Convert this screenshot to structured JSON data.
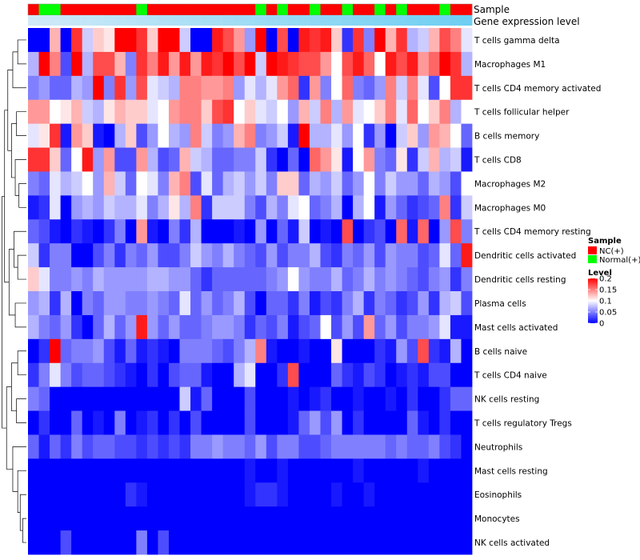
{
  "chart_data": {
    "type": "heatmap",
    "annotation_labels": {
      "sample": "Sample",
      "gene_expression": "Gene expression level"
    },
    "rows": [
      "T cells gamma delta",
      "Macrophages M1",
      "T cells CD4 memory activated",
      "T cells follicular helper",
      "B cells memory",
      "T cells CD8",
      "Macrophages M2",
      "Macrophages M0",
      "T cells CD4 memory resting",
      "Dendritic cells activated",
      "Dendritic cells resting",
      "Plasma cells",
      "Mast cells activated",
      "B cells naive",
      "T cells CD4 naive",
      "NK cells resting",
      "T cells regulatory  Tregs",
      "Neutrophils",
      "Mast cells resting",
      "Eosinophils",
      "Monocytes",
      "NK cells activated"
    ],
    "columns": [
      {
        "sample": "NC(+)",
        "expr": 0.0
      },
      {
        "sample": "Normal(+)",
        "expr": 0.02
      },
      {
        "sample": "Normal(+)",
        "expr": 0.04
      },
      {
        "sample": "NC(+)",
        "expr": 0.06
      },
      {
        "sample": "NC(+)",
        "expr": 0.08
      },
      {
        "sample": "NC(+)",
        "expr": 0.1
      },
      {
        "sample": "NC(+)",
        "expr": 0.12
      },
      {
        "sample": "NC(+)",
        "expr": 0.14
      },
      {
        "sample": "NC(+)",
        "expr": 0.16
      },
      {
        "sample": "NC(+)",
        "expr": 0.18
      },
      {
        "sample": "Normal(+)",
        "expr": 0.2
      },
      {
        "sample": "NC(+)",
        "expr": 0.22
      },
      {
        "sample": "NC(+)",
        "expr": 0.24
      },
      {
        "sample": "NC(+)",
        "expr": 0.26
      },
      {
        "sample": "NC(+)",
        "expr": 0.28
      },
      {
        "sample": "NC(+)",
        "expr": 0.3
      },
      {
        "sample": "NC(+)",
        "expr": 0.32
      },
      {
        "sample": "NC(+)",
        "expr": 0.34
      },
      {
        "sample": "NC(+)",
        "expr": 0.36
      },
      {
        "sample": "NC(+)",
        "expr": 0.38
      },
      {
        "sample": "NC(+)",
        "expr": 0.4
      },
      {
        "sample": "Normal(+)",
        "expr": 0.42
      },
      {
        "sample": "NC(+)",
        "expr": 0.44
      },
      {
        "sample": "Normal(+)",
        "expr": 0.46
      },
      {
        "sample": "NC(+)",
        "expr": 0.48
      },
      {
        "sample": "NC(+)",
        "expr": 0.5
      },
      {
        "sample": "Normal(+)",
        "expr": 0.52
      },
      {
        "sample": "NC(+)",
        "expr": 0.54
      },
      {
        "sample": "NC(+)",
        "expr": 0.56
      },
      {
        "sample": "Normal(+)",
        "expr": 0.58
      },
      {
        "sample": "NC(+)",
        "expr": 0.6
      },
      {
        "sample": "NC(+)",
        "expr": 0.62
      },
      {
        "sample": "Normal(+)",
        "expr": 0.64
      },
      {
        "sample": "NC(+)",
        "expr": 0.66
      },
      {
        "sample": "Normal(+)",
        "expr": 0.68
      },
      {
        "sample": "NC(+)",
        "expr": 0.7
      },
      {
        "sample": "NC(+)",
        "expr": 0.72
      },
      {
        "sample": "NC(+)",
        "expr": 0.74
      },
      {
        "sample": "Normal(+)",
        "expr": 0.76
      },
      {
        "sample": "NC(+)",
        "expr": 0.78
      },
      {
        "sample": "NC(+)",
        "expr": 0.8
      }
    ],
    "values": [
      [
        0.0,
        0.0,
        0.13,
        0.0,
        0.18,
        0.08,
        0.12,
        0.11,
        0.2,
        0.2,
        0.18,
        0.12,
        0.2,
        0.2,
        0.08,
        0.0,
        0.0,
        0.19,
        0.17,
        0.14,
        0.06,
        0.2,
        0.0,
        0.17,
        0.0,
        0.19,
        0.18,
        0.19,
        0.12,
        0.02,
        0.18,
        0.05,
        0.2,
        0.13,
        0.18,
        0.07,
        0.08,
        0.13,
        0.17,
        0.15,
        0.09
      ],
      [
        0.07,
        0.2,
        0.15,
        0.03,
        0.2,
        0.07,
        0.17,
        0.17,
        0.13,
        0.05,
        0.18,
        0.15,
        0.19,
        0.14,
        0.19,
        0.14,
        0.19,
        0.18,
        0.2,
        0.17,
        0.2,
        0.08,
        0.2,
        0.19,
        0.18,
        0.17,
        0.17,
        0.14,
        0.1,
        0.17,
        0.19,
        0.16,
        0.1,
        0.19,
        0.17,
        0.19,
        0.14,
        0.16,
        0.2,
        0.18,
        0.07
      ],
      [
        0.05,
        0.06,
        0.04,
        0.04,
        0.07,
        0.06,
        0.2,
        0.05,
        0.18,
        0.06,
        0.17,
        0.09,
        0.08,
        0.07,
        0.15,
        0.15,
        0.14,
        0.14,
        0.15,
        0.06,
        0.09,
        0.07,
        0.09,
        0.14,
        0.16,
        0.02,
        0.14,
        0.05,
        0.1,
        0.16,
        0.05,
        0.04,
        0.06,
        0.15,
        0.08,
        0.15,
        0.09,
        0.03,
        0.1,
        0.18,
        0.18
      ],
      [
        0.14,
        0.14,
        0.1,
        0.11,
        0.13,
        0.08,
        0.07,
        0.11,
        0.13,
        0.12,
        0.12,
        0.09,
        0.1,
        0.14,
        0.15,
        0.15,
        0.12,
        0.17,
        0.18,
        0.1,
        0.12,
        0.09,
        0.08,
        0.1,
        0.06,
        0.13,
        0.08,
        0.15,
        0.07,
        0.14,
        0.09,
        0.1,
        0.12,
        0.15,
        0.09,
        0.16,
        0.1,
        0.12,
        0.15,
        0.07,
        0.1
      ],
      [
        0.09,
        0.11,
        0.18,
        0.01,
        0.14,
        0.12,
        0.01,
        0.0,
        0.07,
        0.12,
        0.03,
        0.06,
        0.1,
        0.07,
        0.06,
        0.15,
        0.08,
        0.05,
        0.06,
        0.13,
        0.15,
        0.05,
        0.06,
        0.08,
        0.01,
        0.2,
        0.07,
        0.07,
        0.09,
        0.06,
        0.1,
        0.02,
        0.06,
        0.0,
        0.08,
        0.12,
        0.06,
        0.14,
        0.13,
        0.1,
        0.04
      ],
      [
        0.18,
        0.18,
        0.12,
        0.04,
        0.1,
        0.19,
        0.06,
        0.14,
        0.03,
        0.03,
        0.14,
        0.07,
        0.03,
        0.04,
        0.13,
        0.08,
        0.07,
        0.04,
        0.04,
        0.05,
        0.05,
        0.08,
        0.02,
        0.0,
        0.04,
        0.0,
        0.16,
        0.14,
        0.11,
        0.01,
        0.1,
        0.14,
        0.05,
        0.04,
        0.11,
        0.02,
        0.08,
        0.13,
        0.07,
        0.08,
        0.01
      ],
      [
        0.05,
        0.04,
        0.09,
        0.07,
        0.08,
        0.1,
        0.06,
        0.13,
        0.08,
        0.04,
        0.1,
        0.09,
        0.05,
        0.13,
        0.15,
        0.03,
        0.09,
        0.04,
        0.07,
        0.08,
        0.06,
        0.08,
        0.05,
        0.12,
        0.12,
        0.04,
        0.07,
        0.06,
        0.08,
        0.04,
        0.06,
        0.1,
        0.05,
        0.08,
        0.06,
        0.06,
        0.04,
        0.07,
        0.06,
        0.03,
        0.1
      ],
      [
        0.01,
        0.02,
        0.09,
        0.0,
        0.06,
        0.07,
        0.06,
        0.08,
        0.07,
        0.07,
        0.09,
        0.05,
        0.07,
        0.11,
        0.07,
        0.15,
        0.02,
        0.08,
        0.08,
        0.08,
        0.05,
        0.03,
        0.07,
        0.05,
        0.09,
        0.1,
        0.04,
        0.05,
        0.07,
        0.0,
        0.07,
        0.1,
        0.01,
        0.06,
        0.04,
        0.02,
        0.03,
        0.04,
        0.15,
        0.02,
        0.08
      ],
      [
        0.04,
        0.03,
        0.01,
        0.0,
        0.02,
        0.01,
        0.0,
        0.02,
        0.05,
        0.0,
        0.14,
        0.01,
        0.0,
        0.05,
        0.02,
        0.07,
        0.0,
        0.0,
        0.0,
        0.01,
        0.0,
        0.06,
        0.0,
        0.04,
        0.01,
        0.08,
        0.0,
        0.01,
        0.0,
        0.17,
        0.0,
        0.02,
        0.03,
        0.0,
        0.16,
        0.01,
        0.16,
        0.0,
        0.06,
        0.17,
        0.05
      ],
      [
        0.08,
        0.02,
        0.05,
        0.05,
        0.0,
        0.0,
        0.03,
        0.05,
        0.02,
        0.05,
        0.04,
        0.06,
        0.03,
        0.03,
        0.05,
        0.08,
        0.06,
        0.05,
        0.07,
        0.05,
        0.04,
        0.03,
        0.06,
        0.03,
        0.05,
        0.05,
        0.07,
        0.03,
        0.02,
        0.05,
        0.04,
        0.06,
        0.03,
        0.06,
        0.05,
        0.05,
        0.03,
        0.04,
        0.09,
        0.04,
        0.19
      ],
      [
        0.12,
        0.09,
        0.05,
        0.05,
        0.06,
        0.05,
        0.07,
        0.06,
        0.06,
        0.06,
        0.06,
        0.07,
        0.07,
        0.06,
        0.06,
        0.04,
        0.02,
        0.04,
        0.04,
        0.04,
        0.04,
        0.04,
        0.05,
        0.06,
        0.1,
        0.06,
        0.05,
        0.05,
        0.07,
        0.04,
        0.05,
        0.07,
        0.05,
        0.06,
        0.05,
        0.04,
        0.03,
        0.05,
        0.06,
        0.02,
        0.05
      ],
      [
        0.06,
        0.07,
        0.02,
        0.07,
        0.0,
        0.05,
        0.04,
        0.06,
        0.06,
        0.05,
        0.05,
        0.06,
        0.05,
        0.04,
        0.09,
        0.04,
        0.06,
        0.04,
        0.05,
        0.07,
        0.03,
        0.0,
        0.04,
        0.04,
        0.02,
        0.05,
        0.01,
        0.03,
        0.02,
        0.05,
        0.07,
        0.02,
        0.05,
        0.04,
        0.02,
        0.03,
        0.06,
        0.02,
        0.07,
        0.08,
        0.03
      ],
      [
        0.07,
        0.05,
        0.04,
        0.06,
        0.02,
        0.0,
        0.04,
        0.07,
        0.04,
        0.06,
        0.19,
        0.06,
        0.04,
        0.06,
        0.04,
        0.04,
        0.05,
        0.06,
        0.06,
        0.05,
        0.02,
        0.04,
        0.03,
        0.05,
        0.01,
        0.03,
        0.04,
        0.1,
        0.03,
        0.06,
        0.03,
        0.14,
        0.04,
        0.06,
        0.03,
        0.05,
        0.05,
        0.06,
        0.09,
        0.01,
        0.01
      ],
      [
        0.0,
        0.02,
        0.2,
        0.04,
        0.05,
        0.05,
        0.06,
        0.03,
        0.01,
        0.04,
        0.01,
        0.02,
        0.01,
        0.0,
        0.05,
        0.05,
        0.05,
        0.04,
        0.03,
        0.05,
        0.07,
        0.15,
        0.01,
        0.0,
        0.0,
        0.01,
        0.0,
        0.0,
        0.11,
        0.0,
        0.0,
        0.0,
        0.02,
        0.01,
        0.06,
        0.03,
        0.17,
        0.02,
        0.01,
        0.07,
        0.0
      ],
      [
        0.02,
        0.05,
        0.09,
        0.05,
        0.03,
        0.04,
        0.04,
        0.03,
        0.02,
        0.01,
        0.0,
        0.02,
        0.0,
        0.03,
        0.04,
        0.04,
        0.01,
        0.0,
        0.0,
        0.07,
        0.09,
        0.0,
        0.0,
        0.02,
        0.17,
        0.0,
        0.0,
        0.0,
        0.04,
        0.02,
        0.01,
        0.03,
        0.02,
        0.0,
        0.01,
        0.02,
        0.01,
        0.03,
        0.03,
        0.0,
        0.0
      ],
      [
        0.05,
        0.04,
        0.0,
        0.0,
        0.0,
        0.0,
        0.0,
        0.0,
        0.0,
        0.0,
        0.0,
        0.0,
        0.0,
        0.0,
        0.08,
        0.01,
        0.04,
        0.0,
        0.0,
        0.0,
        0.03,
        0.0,
        0.0,
        0.0,
        0.01,
        0.0,
        0.01,
        0.02,
        0.0,
        0.0,
        0.01,
        0.0,
        0.0,
        0.01,
        0.0,
        0.02,
        0.0,
        0.0,
        0.02,
        0.04,
        0.04
      ],
      [
        0.0,
        0.02,
        0.0,
        0.0,
        0.04,
        0.0,
        0.01,
        0.0,
        0.05,
        0.0,
        0.01,
        0.02,
        0.0,
        0.02,
        0.0,
        0.03,
        0.0,
        0.0,
        0.0,
        0.0,
        0.03,
        0.0,
        0.0,
        0.0,
        0.01,
        0.04,
        0.06,
        0.03,
        0.06,
        0.0,
        0.02,
        0.0,
        0.0,
        0.0,
        0.0,
        0.04,
        0.01,
        0.0,
        0.02,
        0.0,
        0.0
      ],
      [
        0.04,
        0.01,
        0.04,
        0.02,
        0.05,
        0.03,
        0.04,
        0.04,
        0.03,
        0.03,
        0.02,
        0.03,
        0.02,
        0.03,
        0.02,
        0.05,
        0.05,
        0.06,
        0.05,
        0.05,
        0.04,
        0.06,
        0.03,
        0.05,
        0.05,
        0.03,
        0.03,
        0.04,
        0.05,
        0.05,
        0.05,
        0.05,
        0.05,
        0.04,
        0.05,
        0.04,
        0.04,
        0.05,
        0.03,
        0.02,
        0.0
      ],
      [
        0.0,
        0.0,
        0.0,
        0.0,
        0.0,
        0.0,
        0.0,
        0.0,
        0.0,
        0.0,
        0.0,
        0.0,
        0.0,
        0.0,
        0.0,
        0.0,
        0.0,
        0.0,
        0.0,
        0.0,
        0.01,
        0.0,
        0.0,
        0.01,
        0.0,
        0.0,
        0.0,
        0.0,
        0.0,
        0.0,
        0.01,
        0.0,
        0.0,
        0.0,
        0.0,
        0.0,
        0.01,
        0.0,
        0.0,
        0.0,
        0.0
      ],
      [
        0.0,
        0.0,
        0.0,
        0.0,
        0.0,
        0.0,
        0.0,
        0.0,
        0.0,
        0.02,
        0.01,
        0.0,
        0.0,
        0.0,
        0.0,
        0.0,
        0.0,
        0.0,
        0.0,
        0.0,
        0.01,
        0.02,
        0.02,
        0.01,
        0.0,
        0.0,
        0.0,
        0.0,
        0.01,
        0.0,
        0.0,
        0.01,
        0.0,
        0.0,
        0.0,
        0.0,
        0.0,
        0.0,
        0.0,
        0.0,
        0.0
      ],
      [
        0.0,
        0.0,
        0.0,
        0.0,
        0.0,
        0.0,
        0.0,
        0.0,
        0.0,
        0.0,
        0.0,
        0.0,
        0.0,
        0.0,
        0.0,
        0.0,
        0.0,
        0.0,
        0.0,
        0.0,
        0.0,
        0.0,
        0.0,
        0.0,
        0.0,
        0.0,
        0.0,
        0.0,
        0.0,
        0.0,
        0.0,
        0.0,
        0.0,
        0.0,
        0.0,
        0.0,
        0.0,
        0.0,
        0.0,
        0.0,
        0.0
      ],
      [
        0.0,
        0.0,
        0.0,
        0.03,
        0.0,
        0.0,
        0.0,
        0.0,
        0.0,
        0.0,
        0.05,
        0.0,
        0.03,
        0.0,
        0.0,
        0.0,
        0.0,
        0.0,
        0.0,
        0.0,
        0.0,
        0.0,
        0.0,
        0.0,
        0.0,
        0.0,
        0.0,
        0.0,
        0.0,
        0.0,
        0.0,
        0.0,
        0.0,
        0.0,
        0.0,
        0.0,
        0.0,
        0.0,
        0.0,
        0.0,
        0.0
      ]
    ],
    "color_scale": {
      "min": 0,
      "max": 0.2,
      "low": "#0000ff",
      "mid": "#ffffff",
      "mid_value": 0.1,
      "high": "#ff0000"
    },
    "legend": {
      "sample_title": "Sample",
      "sample_items": [
        {
          "label": "NC(+)",
          "color": "#ff0000"
        },
        {
          "label": "Normal(+)",
          "color": "#00ff00"
        }
      ],
      "level_title": "Level",
      "level_ticks": [
        {
          "value": 0.2,
          "label": "0.2"
        },
        {
          "value": 0.15,
          "label": "0.15"
        },
        {
          "value": 0.1,
          "label": "0.1"
        },
        {
          "value": 0.05,
          "label": "0.05"
        },
        {
          "value": 0,
          "label": "0"
        }
      ]
    },
    "gene_expression_colors": {
      "low": "#cfe9f8",
      "high": "#56c8f0"
    }
  }
}
